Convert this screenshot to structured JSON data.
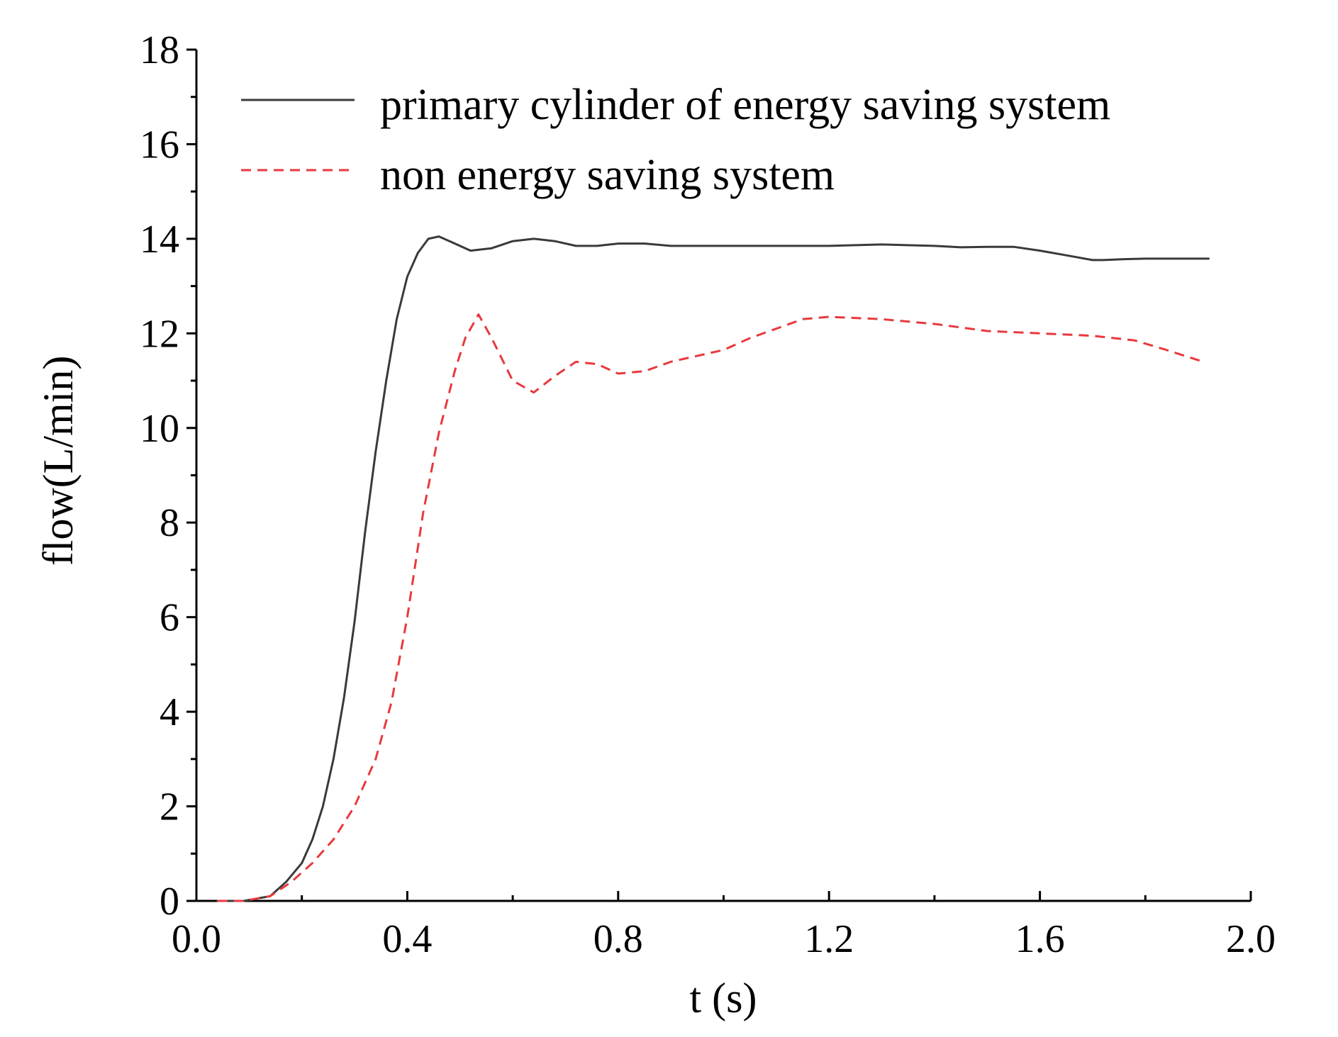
{
  "chart_data": {
    "type": "line",
    "title": "",
    "xlabel": "t (s)",
    "ylabel": "flow(L/min)",
    "xlim": [
      0.0,
      2.0
    ],
    "ylim": [
      0,
      18
    ],
    "xticks": [
      0.0,
      0.4,
      0.8,
      1.2,
      1.6,
      2.0
    ],
    "xtick_labels": [
      "0.0",
      "0.4",
      "0.8",
      "1.2",
      "1.6",
      "2.0"
    ],
    "yticks": [
      0,
      2,
      4,
      6,
      8,
      10,
      12,
      14,
      16,
      18
    ],
    "ytick_labels": [
      "0",
      "2",
      "4",
      "6",
      "8",
      "10",
      "12",
      "14",
      "16",
      "18"
    ],
    "grid": false,
    "legend_position": "top-right",
    "series": [
      {
        "name": "primary cylinder of energy saving system",
        "color": "#3a3a3a",
        "dash": "solid",
        "x": [
          0.04,
          0.09,
          0.14,
          0.17,
          0.2,
          0.22,
          0.24,
          0.26,
          0.28,
          0.3,
          0.32,
          0.34,
          0.36,
          0.38,
          0.4,
          0.42,
          0.44,
          0.46,
          0.48,
          0.52,
          0.56,
          0.6,
          0.64,
          0.68,
          0.72,
          0.76,
          0.8,
          0.85,
          0.9,
          1.0,
          1.1,
          1.2,
          1.3,
          1.4,
          1.45,
          1.5,
          1.55,
          1.6,
          1.65,
          1.7,
          1.72,
          1.76,
          1.8,
          1.92
        ],
        "y": [
          0,
          0,
          0.1,
          0.4,
          0.8,
          1.3,
          2.0,
          3.0,
          4.3,
          5.9,
          7.8,
          9.5,
          11.0,
          12.3,
          13.2,
          13.7,
          14.0,
          14.05,
          13.95,
          13.75,
          13.8,
          13.95,
          14.0,
          13.95,
          13.85,
          13.85,
          13.9,
          13.9,
          13.85,
          13.85,
          13.85,
          13.85,
          13.88,
          13.85,
          13.82,
          13.83,
          13.83,
          13.75,
          13.65,
          13.55,
          13.55,
          13.57,
          13.58,
          13.58
        ]
      },
      {
        "name": "non energy saving system",
        "color": "#e8393d",
        "dash": "dashed",
        "x": [
          0.04,
          0.09,
          0.14,
          0.18,
          0.22,
          0.26,
          0.3,
          0.34,
          0.37,
          0.4,
          0.43,
          0.46,
          0.49,
          0.51,
          0.535,
          0.56,
          0.6,
          0.64,
          0.68,
          0.72,
          0.76,
          0.8,
          0.85,
          0.9,
          1.0,
          1.05,
          1.1,
          1.15,
          1.2,
          1.3,
          1.4,
          1.5,
          1.6,
          1.7,
          1.78,
          1.84,
          1.91
        ],
        "y": [
          0,
          0,
          0.1,
          0.4,
          0.8,
          1.3,
          2.0,
          3.0,
          4.2,
          6.0,
          8.2,
          9.9,
          11.2,
          11.9,
          12.4,
          11.9,
          11.0,
          10.75,
          11.1,
          11.4,
          11.35,
          11.15,
          11.2,
          11.4,
          11.65,
          11.9,
          12.1,
          12.3,
          12.35,
          12.3,
          12.2,
          12.05,
          12.0,
          11.95,
          11.85,
          11.65,
          11.4
        ]
      }
    ]
  }
}
